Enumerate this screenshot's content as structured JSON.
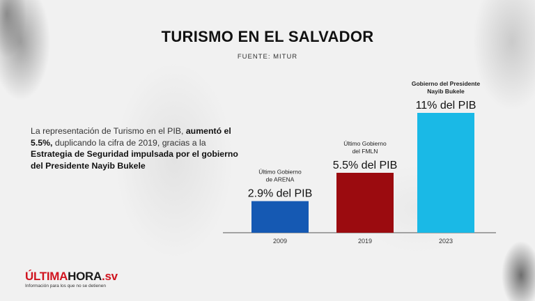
{
  "title": "TURISMO EN EL SALVADOR",
  "source": "FUENTE: MITUR",
  "description": {
    "part1": "La representación de Turismo en el PIB, ",
    "bold1": "aumentó el 5.5%,",
    "part2": " duplicando la cifra de 2019, gracias a la ",
    "bold2": "Estrategia de Seguridad impulsada por el gobierno del Presidente Nayib Bukele"
  },
  "chart_data": {
    "type": "bar",
    "categories": [
      "2009",
      "2019",
      "2023"
    ],
    "values": [
      2.9,
      5.5,
      11
    ],
    "ylim": [
      0,
      11
    ],
    "value_labels": [
      "2.9% del PIB",
      "5.5% del PIB",
      "11% del PIB"
    ],
    "bar_labels": [
      [
        "Último Gobierno",
        "de ARENA"
      ],
      [
        "Último Gobierno",
        "del FMLN"
      ],
      [
        "Gobierno del Presidente",
        "Nayib Bukele"
      ]
    ],
    "colors": [
      "#1559b3",
      "#9b0b0f",
      "#1ab9e6"
    ],
    "grid": false,
    "legend": "none"
  },
  "logo": {
    "part_red": "ÚLTIMA",
    "part_dark": "HORA",
    "part_red2": ".sv",
    "tagline": "Información para los que no se detienen"
  }
}
